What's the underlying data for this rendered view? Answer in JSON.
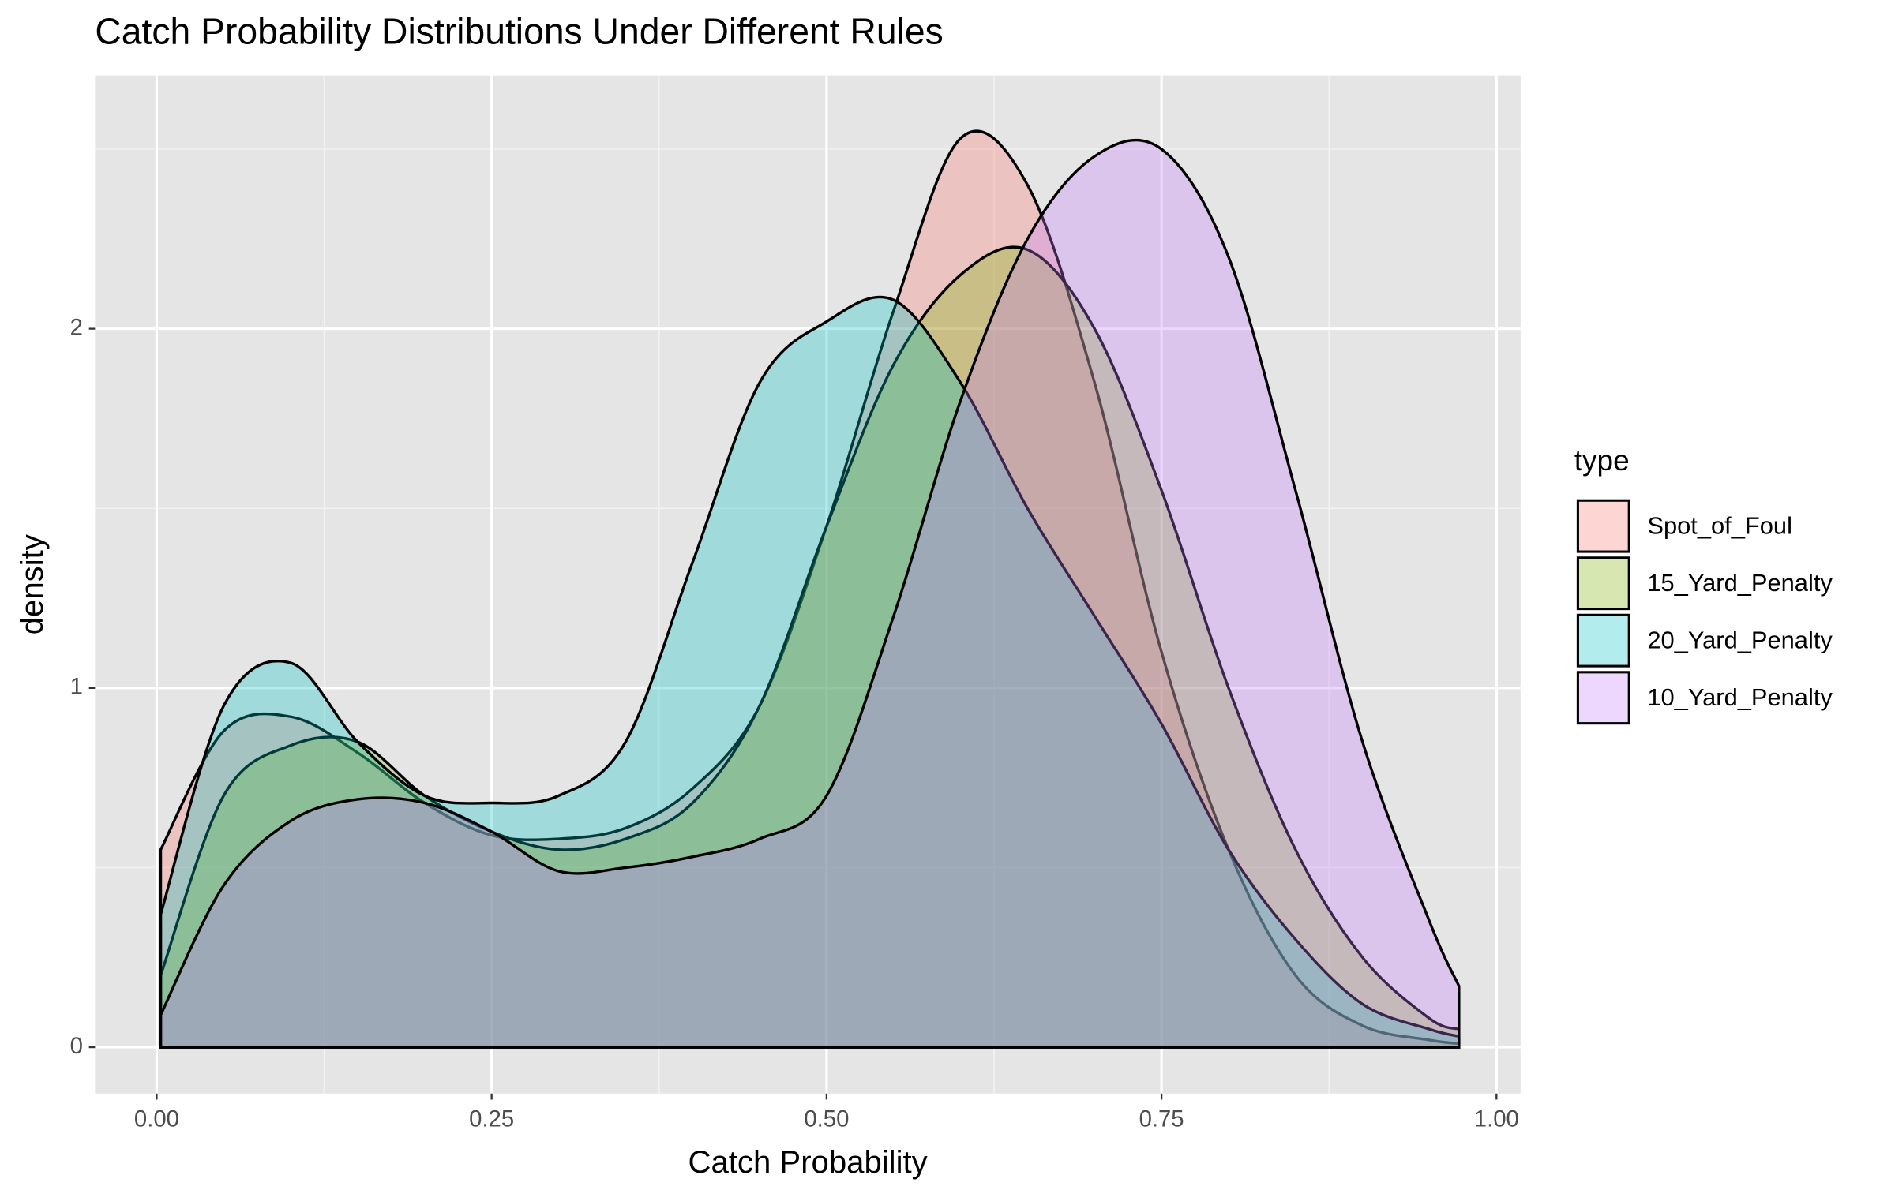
{
  "chart_data": {
    "type": "density",
    "title": "Catch Probability Distributions Under Different Rules",
    "x_label": "Catch Probability",
    "y_label": "density",
    "legend_title": "type",
    "x": [
      0.003,
      0.05,
      0.1,
      0.15,
      0.2,
      0.25,
      0.3,
      0.35,
      0.4,
      0.45,
      0.5,
      0.55,
      0.6,
      0.65,
      0.7,
      0.75,
      0.8,
      0.85,
      0.9,
      0.95,
      0.972
    ],
    "series": [
      {
        "name": "Spot_of_Foul",
        "color": "#F8766D",
        "values": [
          0.55,
          0.88,
          0.92,
          0.82,
          0.68,
          0.59,
          0.58,
          0.61,
          0.72,
          0.95,
          1.45,
          2.05,
          2.53,
          2.4,
          1.85,
          1.1,
          0.55,
          0.2,
          0.06,
          0.02,
          0.01
        ]
      },
      {
        "name": "15_Yard_Penalty",
        "color": "#7CAE00",
        "values": [
          0.2,
          0.7,
          0.84,
          0.85,
          0.7,
          0.6,
          0.55,
          0.58,
          0.68,
          0.95,
          1.45,
          1.9,
          2.15,
          2.22,
          2.0,
          1.55,
          1.0,
          0.55,
          0.25,
          0.08,
          0.05
        ]
      },
      {
        "name": "20_Yard_Penalty",
        "color": "#00BFC4",
        "values": [
          0.37,
          0.95,
          1.07,
          0.85,
          0.7,
          0.68,
          0.7,
          0.85,
          1.35,
          1.85,
          2.02,
          2.08,
          1.85,
          1.5,
          1.2,
          0.9,
          0.55,
          0.3,
          0.12,
          0.05,
          0.03
        ]
      },
      {
        "name": "10_Yard_Penalty",
        "color": "#C77CFF",
        "values": [
          0.09,
          0.45,
          0.63,
          0.69,
          0.68,
          0.6,
          0.49,
          0.5,
          0.53,
          0.58,
          0.7,
          1.2,
          1.8,
          2.25,
          2.48,
          2.5,
          2.2,
          1.55,
          0.85,
          0.35,
          0.17
        ]
      }
    ],
    "fill_opacity": 0.3,
    "xlim": [
      -0.046,
      1.018
    ],
    "ylim": [
      -0.129,
      2.705
    ],
    "xticks": [
      {
        "value": 0,
        "label": "0.00"
      },
      {
        "value": 0.25,
        "label": "0.25"
      },
      {
        "value": 0.5,
        "label": "0.50"
      },
      {
        "value": 0.75,
        "label": "0.75"
      },
      {
        "value": 1,
        "label": "1.00"
      }
    ],
    "yticks": [
      0,
      1,
      2
    ],
    "grid": true
  }
}
